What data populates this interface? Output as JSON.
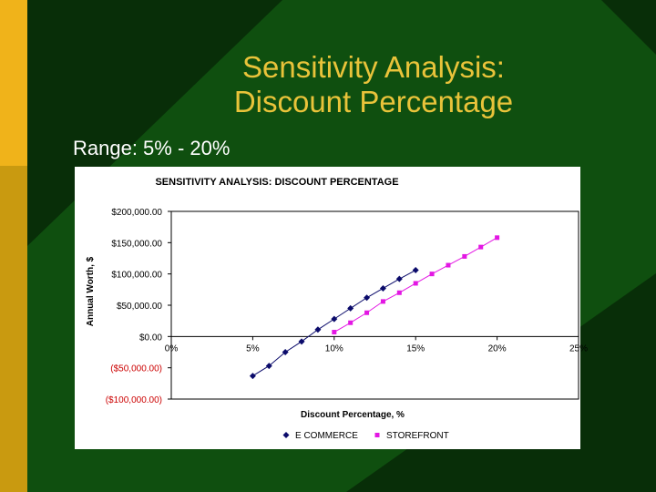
{
  "slide": {
    "title_line1": "Sensitivity Analysis:",
    "title_line2": "Discount Percentage",
    "range_text": "Range: 5% - 20%"
  },
  "colors": {
    "background": "#0f4f0f",
    "title": "#e9c33a",
    "accent_left": "#f0b31a",
    "ecommerce": "#0b0b6b",
    "storefront": "#e317e3",
    "negative_tick": "#cc0000"
  },
  "chart_data": {
    "type": "scatter",
    "title": "SENSITIVITY ANALYSIS: DISCOUNT PERCENTAGE",
    "xlabel": "Discount Percentage, %",
    "ylabel": "Annual Worth, $",
    "xlim": [
      0,
      25
    ],
    "ylim": [
      -100000,
      200000
    ],
    "x_ticks": [
      {
        "value": 0,
        "label": "0%"
      },
      {
        "value": 5,
        "label": "5%"
      },
      {
        "value": 10,
        "label": "10%"
      },
      {
        "value": 15,
        "label": "15%"
      },
      {
        "value": 20,
        "label": "20%"
      },
      {
        "value": 25,
        "label": "25%"
      }
    ],
    "y_ticks": [
      {
        "value": 200000,
        "label": "$200,000.00"
      },
      {
        "value": 150000,
        "label": "$150,000.00"
      },
      {
        "value": 100000,
        "label": "$100,000.00"
      },
      {
        "value": 50000,
        "label": "$50,000.00"
      },
      {
        "value": 0,
        "label": "$0.00"
      },
      {
        "value": -50000,
        "label": "($50,000.00)"
      },
      {
        "value": -100000,
        "label": "($100,000.00)"
      }
    ],
    "legend_position": "bottom",
    "grid": false,
    "series": [
      {
        "name": "E COMMERCE",
        "marker": "diamond",
        "color": "#0b0b6b",
        "x": [
          5,
          6,
          7,
          8,
          9,
          10,
          11,
          12,
          13,
          14,
          15
        ],
        "y": [
          -63000,
          -47000,
          -25000,
          -8000,
          11000,
          28000,
          45000,
          62000,
          77000,
          92000,
          106000
        ]
      },
      {
        "name": "STOREFRONT",
        "marker": "square",
        "color": "#e317e3",
        "x": [
          10,
          11,
          12,
          13,
          14,
          15,
          16,
          17,
          18,
          19,
          20
        ],
        "y": [
          7000,
          22000,
          38000,
          56000,
          70000,
          85000,
          100000,
          114000,
          128000,
          143000,
          158000
        ]
      }
    ]
  }
}
